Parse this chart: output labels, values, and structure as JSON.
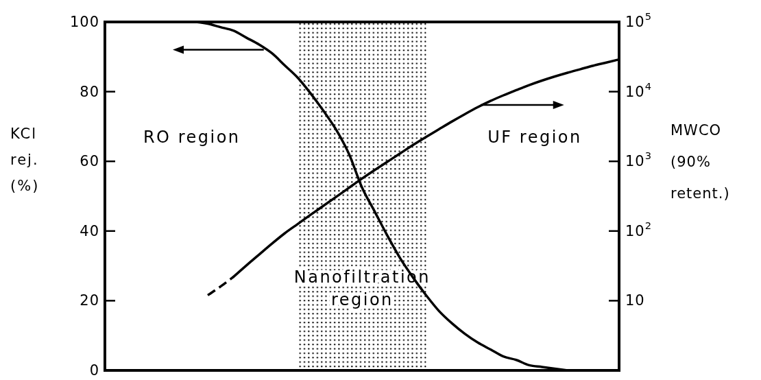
{
  "chart_data": {
    "type": "line",
    "ylabel": "KCl rej. (%)",
    "y2label": "MWCO (90% retent.)",
    "categories": [
      null,
      null,
      null,
      null,
      null,
      null,
      null,
      null,
      null,
      null,
      null,
      null,
      null,
      null,
      null,
      null,
      null,
      null,
      null,
      null,
      null,
      null,
      null,
      null,
      null,
      null,
      null,
      null,
      null,
      null,
      null,
      null,
      null,
      null,
      null,
      null,
      null,
      null,
      null,
      null,
      null
    ],
    "series": [
      {
        "color": "#000000",
        "values": [
          null,
          null,
          null,
          null,
          null,
          null,
          100,
          100,
          99.5,
          98.5,
          97.5,
          95.5,
          93.5,
          91,
          87.5,
          84,
          79.5,
          74.5,
          69,
          62,
          52.5,
          45.5,
          38.5,
          32,
          26.5,
          21.5,
          17,
          13.5,
          10.5,
          8,
          6,
          4,
          3,
          1.5,
          1,
          0.5,
          0,
          null,
          null,
          null,
          null
        ]
      },
      {
        "color": "#000000",
        "axis": "y2",
        "line_style": "dashed",
        "values": [
          null,
          null,
          null,
          null,
          null,
          null,
          null,
          null,
          12,
          16,
          22,
          null,
          null,
          null,
          null,
          null,
          null,
          null,
          null,
          null,
          null,
          null,
          null,
          null,
          null,
          null,
          null,
          null,
          null,
          null,
          null,
          null,
          null,
          null,
          null,
          null,
          null,
          null,
          null,
          null,
          null
        ]
      },
      {
        "color": "#000000",
        "axis": "y2",
        "line_style": "solid",
        "values": [
          null,
          null,
          null,
          null,
          null,
          null,
          null,
          null,
          null,
          null,
          22,
          32,
          46,
          66,
          93,
          126,
          171,
          230,
          310,
          419,
          565,
          753,
          993,
          1310,
          1730,
          2250,
          2900,
          3730,
          4750,
          5980,
          7360,
          8850,
          10500,
          12400,
          14400,
          16500,
          18700,
          21000,
          23600,
          26100,
          29000
        ]
      }
    ],
    "ylim": [
      0,
      100
    ],
    "yticks": [
      0,
      20,
      40,
      60,
      80,
      100
    ],
    "y2lim": [
      1,
      100000
    ],
    "y2ticks": [
      10,
      {
        "value": 100,
        "label": "10$^{2}$"
      },
      {
        "value": 1000,
        "label": "10$^{3}$"
      },
      {
        "value": 10000,
        "label": "10$^{4}$"
      },
      {
        "value": 100000,
        "label": "10$^{5}$"
      }
    ],
    "log": "y2",
    "annotations": [
      "RO region",
      "UF region",
      "Nanofiltration region"
    ]
  }
}
